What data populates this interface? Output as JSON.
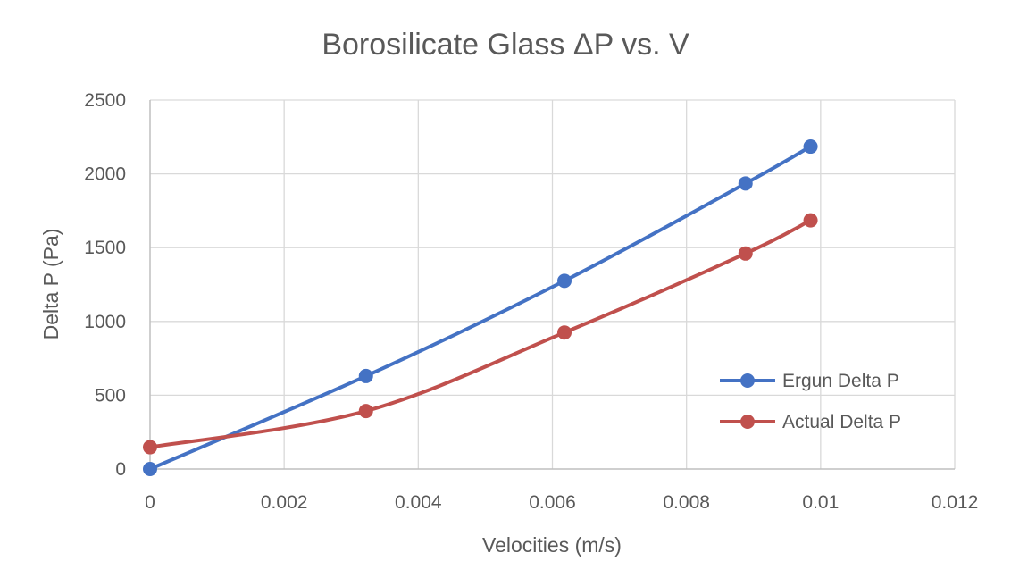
{
  "chart_data": {
    "type": "line",
    "title": "Borosilicate Glass ΔP vs. V",
    "xlabel": "Velocities (m/s)",
    "ylabel": "Delta P (Pa)",
    "xlim": [
      0,
      0.012
    ],
    "ylim": [
      0,
      2500
    ],
    "x_ticks": [
      0,
      0.002,
      0.004,
      0.006,
      0.008,
      0.01,
      0.012
    ],
    "x_tick_labels": [
      "0",
      "0.002",
      "0.004",
      "0.006",
      "0.008",
      "0.01",
      "0.012"
    ],
    "y_ticks": [
      0,
      500,
      1000,
      1500,
      2000,
      2500
    ],
    "y_tick_labels": [
      "0",
      "500",
      "1000",
      "1500",
      "2000",
      "2500"
    ],
    "grid": true,
    "legend_position": "right",
    "series": [
      {
        "name": "Ergun Delta P",
        "color": "#4472c4",
        "x": [
          0,
          0.00322,
          0.00618,
          0.00888,
          0.00985
        ],
        "y": [
          0,
          630,
          1275,
          1935,
          2185
        ]
      },
      {
        "name": "Actual Delta P",
        "color": "#c0504d",
        "x": [
          0,
          0.00322,
          0.00618,
          0.00888,
          0.00985
        ],
        "y": [
          148,
          393,
          925,
          1460,
          1685
        ]
      }
    ]
  }
}
